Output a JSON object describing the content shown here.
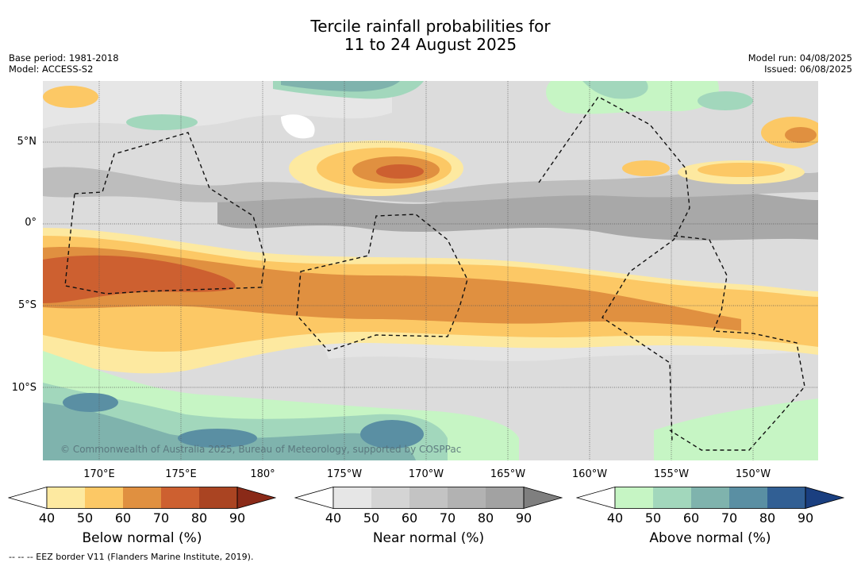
{
  "title": {
    "line1": "Tercile rainfall probabilities for",
    "line2": "11 to 24 August 2025"
  },
  "meta_left": {
    "base_period": "Base period: 1981-2018",
    "model": "Model: ACCESS-S2"
  },
  "meta_right": {
    "model_run": "Model run: 04/08/2025",
    "issued": "Issued: 06/08/2025"
  },
  "map": {
    "lat_labels": [
      "5°N",
      "0°",
      "5°S",
      "10°S"
    ],
    "lon_labels": [
      "170°E",
      "175°E",
      "180°",
      "175°W",
      "170°W",
      "165°W",
      "160°W",
      "155°W",
      "150°W"
    ],
    "copyright": "© Commonwealth of Australia 2025, Bureau of Meteorology, supported by COSPPac",
    "colors": {
      "ocean_grey": "#dcdcdc",
      "grid": "#555555",
      "eez": "#111111"
    }
  },
  "colorbars": [
    {
      "id": "below",
      "label": "Below normal (%)",
      "ticks": [
        "40",
        "50",
        "60",
        "70",
        "80",
        "90"
      ],
      "colors": [
        "#ffffff",
        "#fde9a0",
        "#fcc865",
        "#e09040",
        "#cd6030",
        "#aa4422",
        "#8a2a18"
      ]
    },
    {
      "id": "near",
      "label": "Near normal (%)",
      "ticks": [
        "40",
        "50",
        "60",
        "70",
        "80",
        "90"
      ],
      "colors": [
        "#ffffff",
        "#e6e6e6",
        "#d4d4d4",
        "#c3c3c3",
        "#b2b2b2",
        "#a2a2a2",
        "#7f7f7f"
      ]
    },
    {
      "id": "above",
      "label": "Above normal (%)",
      "ticks": [
        "40",
        "50",
        "60",
        "70",
        "80",
        "90"
      ],
      "colors": [
        "#ffffff",
        "#c6f5c4",
        "#a2d7bc",
        "#7fb3ad",
        "#5a8fa3",
        "#315f94",
        "#1a3f80"
      ]
    }
  ],
  "footer": "-- -- -- EEZ border V11 (Flanders Marine Institute, 2019)."
}
